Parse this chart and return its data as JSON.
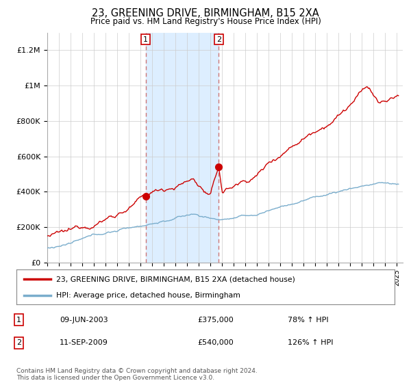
{
  "title": "23, GREENING DRIVE, BIRMINGHAM, B15 2XA",
  "subtitle": "Price paid vs. HM Land Registry's House Price Index (HPI)",
  "legend_line1": "23, GREENING DRIVE, BIRMINGHAM, B15 2XA (detached house)",
  "legend_line2": "HPI: Average price, detached house, Birmingham",
  "sale1_date": "09-JUN-2003",
  "sale1_price": "£375,000",
  "sale1_hpi": "78% ↑ HPI",
  "sale1_year": 2003.44,
  "sale1_value": 375000,
  "sale2_date": "11-SEP-2009",
  "sale2_price": "£540,000",
  "sale2_hpi": "126% ↑ HPI",
  "sale2_year": 2009.71,
  "sale2_value": 540000,
  "ylim": [
    0,
    1300000
  ],
  "xlim_start": 1995.0,
  "xlim_end": 2025.5,
  "red_color": "#cc0000",
  "blue_color": "#7aadcc",
  "shade_color": "#ddeeff",
  "dashed_color": "#cc7777",
  "footer": "Contains HM Land Registry data © Crown copyright and database right 2024.\nThis data is licensed under the Open Government Licence v3.0.",
  "background_color": "#ffffff",
  "grid_color": "#cccccc"
}
